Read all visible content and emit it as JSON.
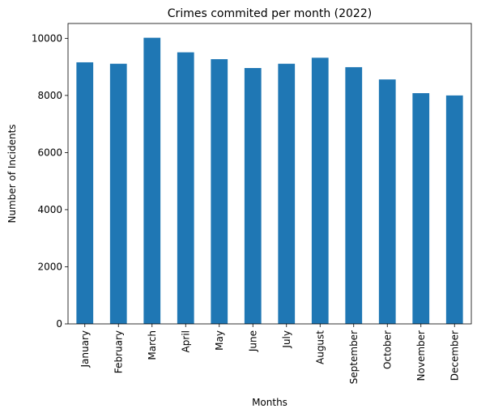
{
  "chart_data": {
    "type": "bar",
    "title": "Crimes commited per month (2022)",
    "xlabel": "Months",
    "ylabel": "Number of Incidents",
    "categories": [
      "January",
      "February",
      "March",
      "April",
      "May",
      "June",
      "July",
      "August",
      "September",
      "October",
      "November",
      "December"
    ],
    "values": [
      9160,
      9110,
      10020,
      9510,
      9270,
      8960,
      9110,
      9320,
      8990,
      8560,
      8080,
      8000
    ],
    "ylim": [
      0,
      10520
    ],
    "yticks": [
      0,
      2000,
      4000,
      6000,
      8000,
      10000
    ],
    "grid": false,
    "legend": "none",
    "bar_color": "#1f77b4"
  }
}
